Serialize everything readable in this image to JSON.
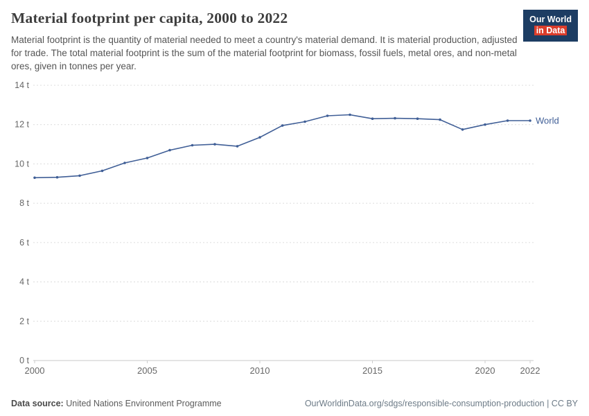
{
  "header": {
    "title": "Material footprint per capita, 2000 to 2022",
    "subtitle": "Material footprint is the quantity of material needed to meet a country's material demand. It is material production, adjusted for trade. The total material footprint is the sum of the material footprint for biomass, fossil fuels, metal ores, and non-metal ores, given in tonnes per year.",
    "logo": {
      "line1": "Our World",
      "line2": "in Data"
    }
  },
  "chart_data": {
    "type": "line",
    "title": "Material footprint per capita, 2000 to 2022",
    "x": [
      2000,
      2001,
      2002,
      2003,
      2004,
      2005,
      2006,
      2007,
      2008,
      2009,
      2010,
      2011,
      2012,
      2013,
      2014,
      2015,
      2016,
      2017,
      2018,
      2019,
      2020,
      2021,
      2022
    ],
    "series": [
      {
        "name": "World",
        "color": "#3f5e96",
        "values": [
          9.3,
          9.32,
          9.4,
          9.65,
          10.05,
          10.3,
          10.7,
          10.95,
          11.0,
          10.9,
          11.35,
          11.95,
          12.15,
          12.45,
          12.5,
          12.3,
          12.32,
          12.3,
          12.25,
          11.75,
          12.0,
          12.2,
          12.2
        ]
      }
    ],
    "ylim": [
      0,
      14
    ],
    "yticks": [
      0,
      2,
      4,
      6,
      8,
      10,
      12,
      14
    ],
    "ytick_format": "{v} t",
    "xticks": [
      2000,
      2005,
      2010,
      2015,
      2020,
      2022
    ],
    "grid": true,
    "legend": "end-of-line-label",
    "axis_label_color": "#666666",
    "gridline_color": "#dcdcdc",
    "axis_line_color": "#c8c8c8"
  },
  "footer": {
    "datasource_label": "Data source:",
    "datasource_value": "United Nations Environment Programme",
    "link": "OurWorldinData.org/sdgs/responsible-consumption-production | CC BY"
  }
}
